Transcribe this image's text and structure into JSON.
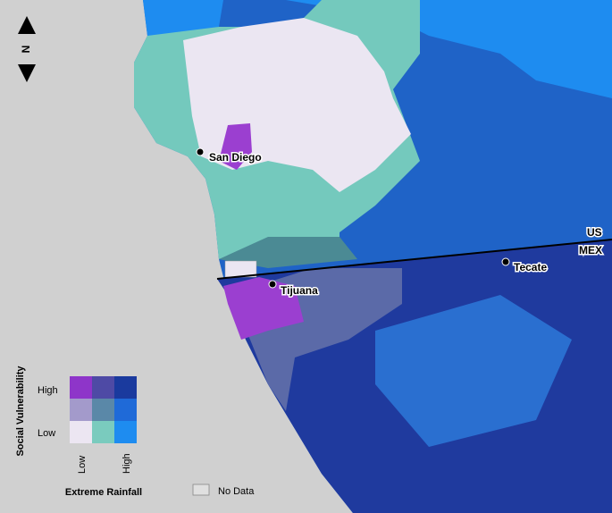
{
  "compass": {
    "label": "N"
  },
  "places": [
    {
      "label": "San Diego"
    },
    {
      "label": "Tijuana"
    },
    {
      "label": "Tecate"
    }
  ],
  "border": {
    "north": "US",
    "south": "MEX"
  },
  "legend": {
    "y_title": "Social Vulnerability",
    "y_labels": [
      "High",
      "Low"
    ],
    "x_title": "Extreme Rainfall",
    "x_labels": [
      "Low",
      "High"
    ],
    "no_data": "No Data"
  }
}
